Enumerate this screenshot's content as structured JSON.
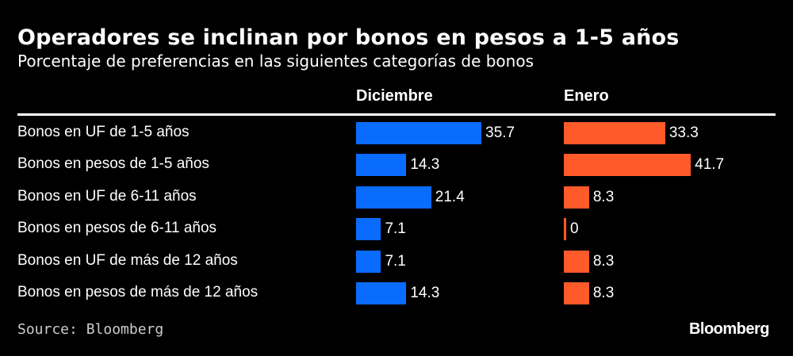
{
  "chart_data": {
    "type": "bar",
    "orientation": "horizontal",
    "title": "Operadores se inclinan por bonos en pesos a 1-5 años",
    "subtitle": "Porcentaje de preferencias en las siguientes categorías de bonos",
    "categories": [
      "Bonos en UF de 1-5 años",
      "Bonos en pesos de 1-5 años",
      "Bonos en UF de 6-11 años",
      "Bonos en pesos de 6-11 años",
      "Bonos en UF de más de 12 años",
      "Bonos en pesos de más de 12 años"
    ],
    "series": [
      {
        "name": "Diciembre",
        "color": "#0a6cff",
        "values": [
          35.7,
          14.3,
          21.4,
          7.1,
          7.1,
          14.3
        ],
        "labels": [
          "35.7",
          "14.3",
          "21.4",
          "7.1",
          "7.1",
          "14.3"
        ]
      },
      {
        "name": "Enero",
        "color": "#ff5a2a",
        "values": [
          33.3,
          41.7,
          8.3,
          0,
          8.3,
          8.3
        ],
        "labels": [
          "33.3",
          "41.7",
          "8.3",
          "0",
          "8.3",
          "8.3"
        ]
      }
    ],
    "source": "Source: Bloomberg",
    "logo": "Bloomberg"
  }
}
